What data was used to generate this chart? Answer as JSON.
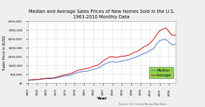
{
  "title": "Median and Average Sales Prices of New Homes Sold in the U.S.\n1963-2010 Monthly Data",
  "xlabel": "Year",
  "ylabel": "Sales Price in $USD",
  "source_text": "Source:  U.S. Census Bureau New Sales",
  "legend_median": "Median",
  "legend_average": "Average",
  "median_color": "#4472C4",
  "average_color": "#CC0000",
  "bg_color": "#EFEFEF",
  "plot_bg": "#FFFFFF",
  "legend_bg": "#92D050",
  "ylim": [
    0,
    350000
  ],
  "yticks": [
    0,
    50000,
    100000,
    150000,
    200000,
    250000,
    300000,
    350000
  ],
  "ytick_labels": [
    "$0",
    "$50,000",
    "$100,000",
    "$150,000",
    "$200,000",
    "$250,000",
    "$300,000",
    "$350,000"
  ],
  "years": [
    1963,
    1964,
    1965,
    1966,
    1967,
    1968,
    1969,
    1970,
    1971,
    1972,
    1973,
    1974,
    1975,
    1976,
    1977,
    1978,
    1979,
    1980,
    1981,
    1982,
    1983,
    1984,
    1985,
    1986,
    1987,
    1988,
    1989,
    1990,
    1991,
    1992,
    1993,
    1994,
    1995,
    1996,
    1997,
    1998,
    1999,
    2000,
    2001,
    2002,
    2003,
    2004,
    2005,
    2006,
    2007,
    2008,
    2009,
    2010
  ],
  "median": [
    18000,
    18900,
    20000,
    21400,
    22700,
    24700,
    27900,
    26600,
    28300,
    30500,
    35500,
    38900,
    42600,
    44200,
    48800,
    55700,
    62900,
    64600,
    68900,
    69300,
    75300,
    79900,
    84300,
    92000,
    104500,
    112500,
    120000,
    122900,
    120000,
    121500,
    126500,
    130000,
    133900,
    140000,
    146000,
    152000,
    161000,
    169000,
    175200,
    187600,
    195000,
    221000,
    240900,
    246500,
    247900,
    232100,
    216700,
    221800
  ],
  "average": [
    19300,
    20500,
    21500,
    23300,
    24600,
    26600,
    29600,
    29600,
    31600,
    34500,
    40600,
    45500,
    49300,
    52500,
    57800,
    65700,
    75100,
    76400,
    83000,
    83900,
    89800,
    97600,
    100800,
    111200,
    127200,
    138300,
    148800,
    149800,
    147200,
    149200,
    154000,
    154500,
    158700,
    166400,
    176200,
    181900,
    193300,
    207000,
    213200,
    228700,
    246300,
    274500,
    297000,
    305900,
    313600,
    292600,
    270900,
    272900
  ]
}
